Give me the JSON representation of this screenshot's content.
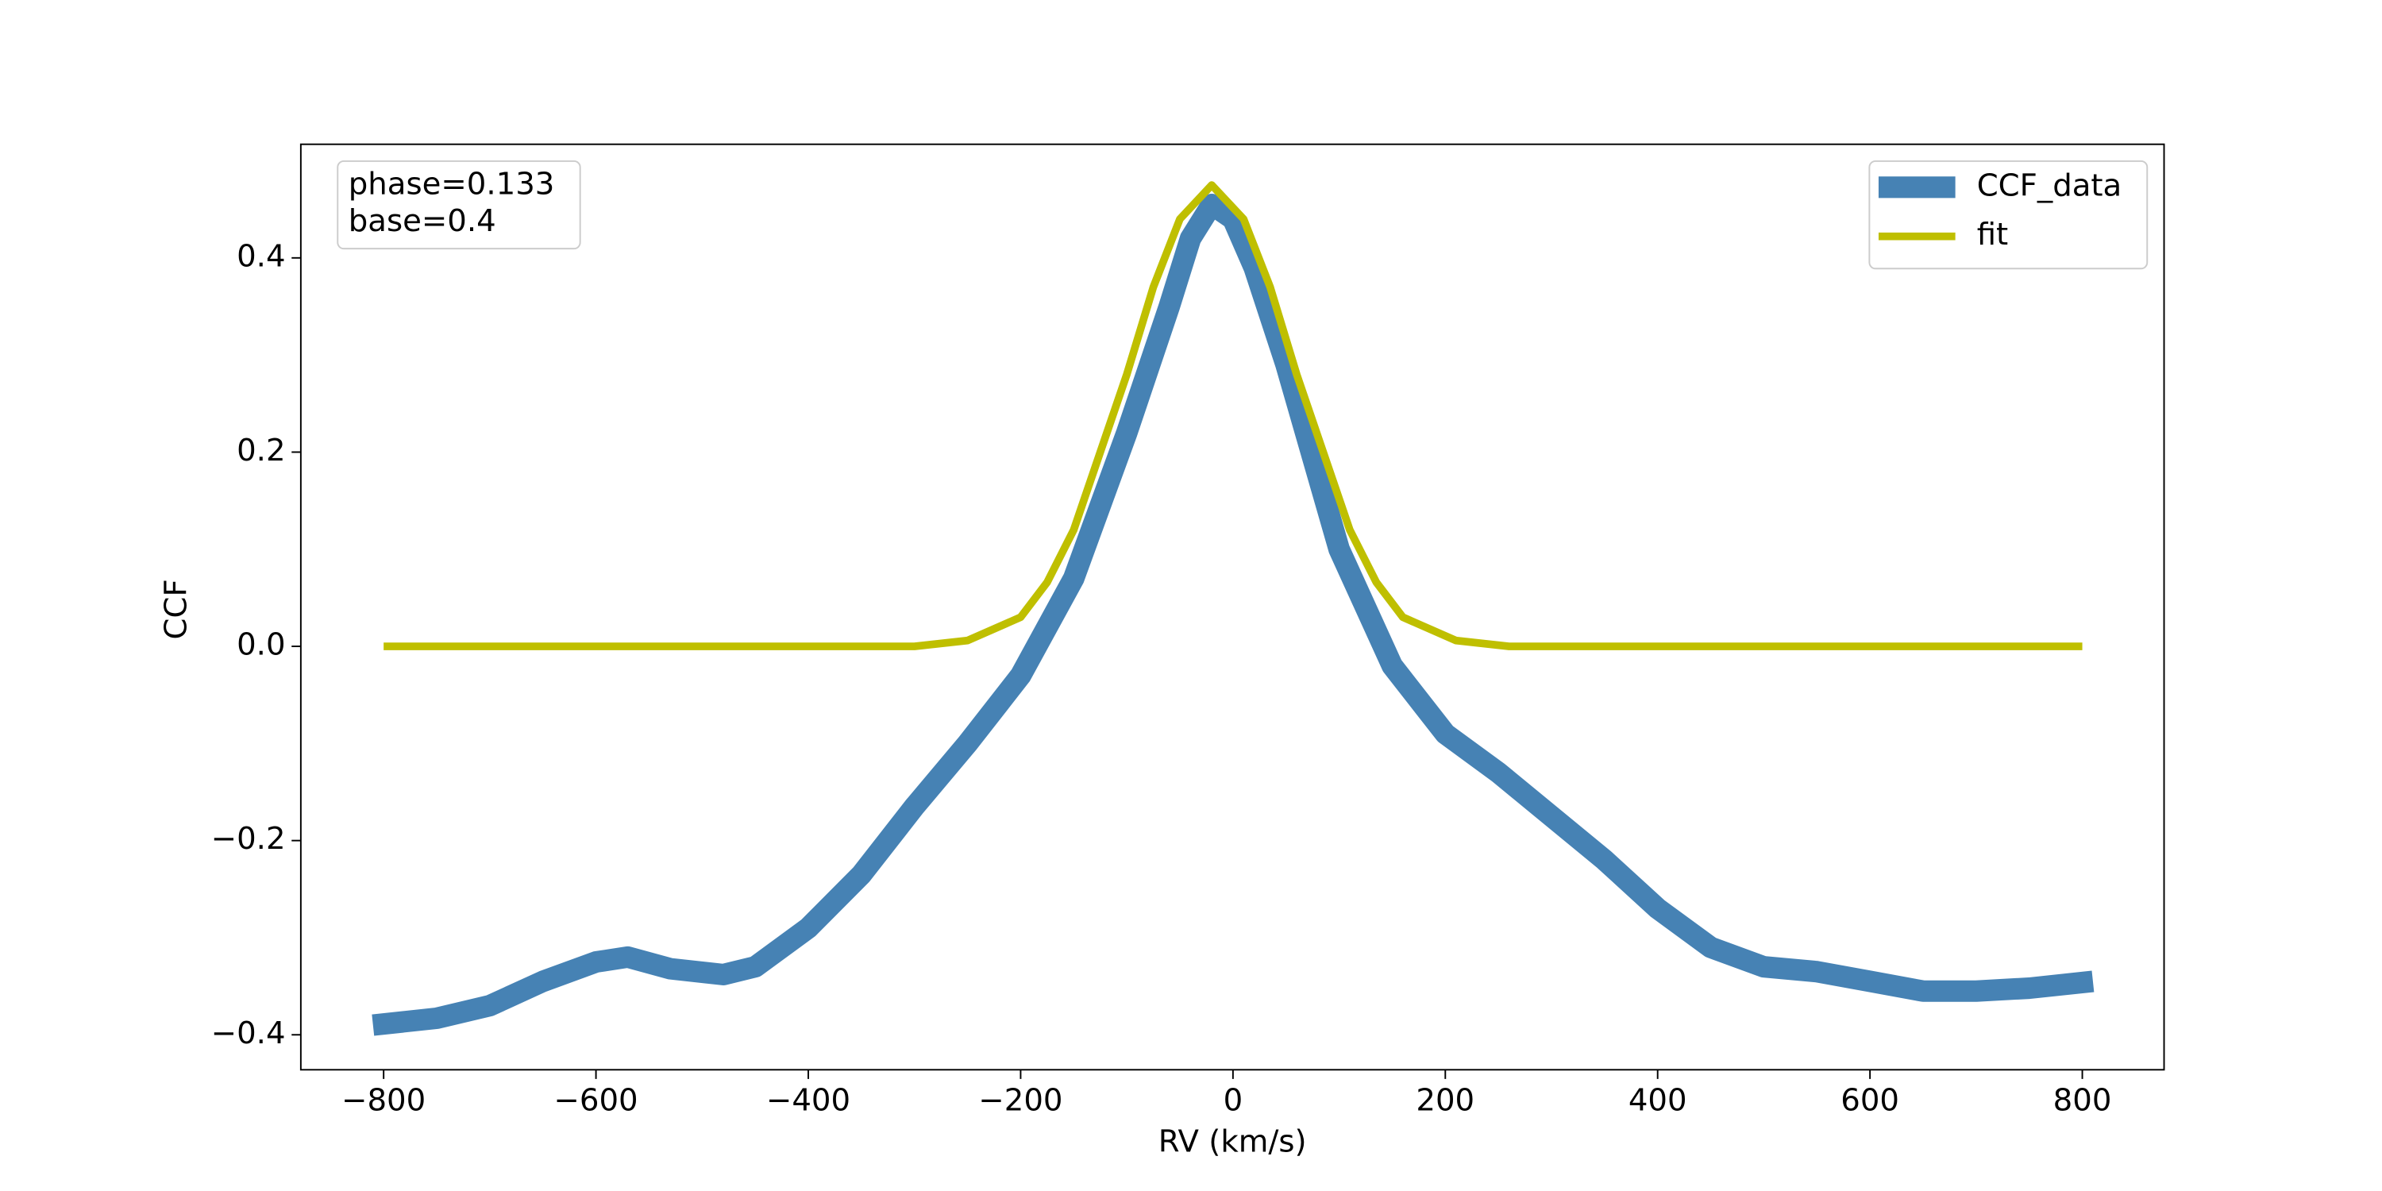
{
  "chart_data": {
    "type": "line",
    "xlabel": "RV (km/s)",
    "ylabel": "CCF",
    "annotations": [
      "phase=0.133",
      "base=0.4"
    ],
    "series": [
      {
        "name": "CCF_data",
        "color": "#4682b4",
        "x": [
          -810,
          -750,
          -700,
          -650,
          -600,
          -570,
          -530,
          -480,
          -450,
          -400,
          -350,
          -300,
          -250,
          -200,
          -150,
          -100,
          -60,
          -40,
          -20,
          0,
          20,
          50,
          100,
          150,
          200,
          250,
          300,
          350,
          400,
          450,
          500,
          550,
          600,
          650,
          700,
          750,
          810
        ],
        "values": [
          -0.39,
          -0.383,
          -0.37,
          -0.345,
          -0.325,
          -0.32,
          -0.332,
          -0.338,
          -0.33,
          -0.29,
          -0.235,
          -0.165,
          -0.1,
          -0.03,
          0.07,
          0.22,
          0.35,
          0.42,
          0.455,
          0.44,
          0.39,
          0.29,
          0.1,
          -0.02,
          -0.09,
          -0.13,
          -0.175,
          -0.22,
          -0.27,
          -0.31,
          -0.33,
          -0.335,
          -0.345,
          -0.355,
          -0.355,
          -0.352,
          -0.345
        ]
      },
      {
        "name": "fit",
        "color": "#bfbf00",
        "x": [
          -800,
          -400,
          -300,
          -250,
          -200,
          -175,
          -150,
          -125,
          -100,
          -75,
          -50,
          -20,
          10,
          35,
          60,
          85,
          110,
          135,
          160,
          210,
          260,
          800
        ],
        "values": [
          0,
          0,
          0,
          0.006,
          0.03,
          0.066,
          0.12,
          0.2,
          0.28,
          0.37,
          0.44,
          0.475,
          0.44,
          0.37,
          0.28,
          0.2,
          0.12,
          0.066,
          0.03,
          0.006,
          0,
          0
        ]
      }
    ],
    "xlim": [
      -878,
      877
    ],
    "xticks": [
      {
        "value": -800,
        "label": "−800"
      },
      {
        "value": -600,
        "label": "−600"
      },
      {
        "value": -400,
        "label": "−400"
      },
      {
        "value": -200,
        "label": "−200"
      },
      0,
      200,
      400,
      600,
      800
    ],
    "ylim": [
      -0.436,
      0.517
    ],
    "yticks": [
      {
        "value": -0.4,
        "label": "−0.4"
      },
      {
        "value": -0.2,
        "label": "−0.2"
      },
      {
        "value": 0,
        "label": "0.0"
      },
      0.2,
      0.4
    ],
    "legend": "upper right",
    "grid": false
  }
}
